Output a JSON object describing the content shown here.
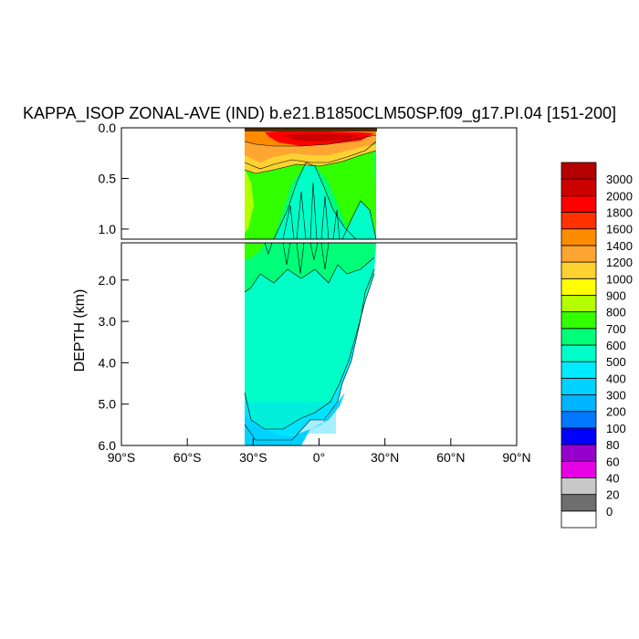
{
  "chart_data": {
    "type": "heatmap",
    "title": "KAPPA_ISOP ZONAL-AVE (IND) b.e21.B1850CLM50SP.f09_g17.PI.04 [151-200]",
    "ylabel": "DEPTH (km)",
    "xlim": [
      -90,
      90
    ],
    "ylim_upper_panel_km": [
      0.0,
      1.1
    ],
    "ylim_lower_panel_km": [
      1.1,
      6.0
    ],
    "y_reversed": true,
    "x_ticks": [
      {
        "value": -90,
        "label": "90°S"
      },
      {
        "value": -60,
        "label": "60°S"
      },
      {
        "value": -30,
        "label": "30°S"
      },
      {
        "value": 0,
        "label": "0°"
      },
      {
        "value": 30,
        "label": "30°N"
      },
      {
        "value": 60,
        "label": "60°N"
      },
      {
        "value": 90,
        "label": "90°N"
      }
    ],
    "y_ticks_upper": [
      {
        "value": 0.0,
        "label": "0.0"
      },
      {
        "value": 0.5,
        "label": "0.5"
      },
      {
        "value": 1.0,
        "label": "1.0"
      }
    ],
    "y_ticks_lower": [
      {
        "value": 2.0,
        "label": "2.0"
      },
      {
        "value": 3.0,
        "label": "3.0"
      },
      {
        "value": 4.0,
        "label": "4.0"
      },
      {
        "value": 5.0,
        "label": "5.0"
      },
      {
        "value": 6.0,
        "label": "6.0"
      }
    ],
    "data_lat_range": [
      -35,
      25
    ],
    "colorbar": {
      "levels": [
        "0",
        "20",
        "40",
        "60",
        "80",
        "100",
        "200",
        "300",
        "400",
        "500",
        "600",
        "700",
        "800",
        "900",
        "1000",
        "1200",
        "1400",
        "1600",
        "1800",
        "2000",
        "3000"
      ],
      "colors": [
        "#ffffff",
        "#6e6e6e",
        "#c8c8c8",
        "#e600e6",
        "#9600cd",
        "#0000ff",
        "#0078ff",
        "#00b4ff",
        "#00d2ff",
        "#00ebff",
        "#00ffc8",
        "#00ff78",
        "#32ff00",
        "#b4ff00",
        "#ffff00",
        "#ffd232",
        "#ffa532",
        "#ff8c00",
        "#ff3200",
        "#ff0000",
        "#cd0000",
        "#b40000"
      ]
    },
    "fields": [
      {
        "lat_start": -35,
        "lat_end": 25,
        "depth_top": 0.0,
        "depth_bottom": 0.3,
        "value": 1300,
        "note": "surface orange band"
      },
      {
        "lat_start": -20,
        "lat_end": 20,
        "depth_top": 0.0,
        "depth_bottom": 0.08,
        "value": 2500,
        "note": "red near-surface maximum"
      },
      {
        "lat_start": -35,
        "lat_end": 25,
        "depth_top": 0.3,
        "depth_bottom": 1.6,
        "value": 750
      },
      {
        "lat_start": -35,
        "lat_end": 25,
        "depth_top": 1.6,
        "depth_bottom": 4.5,
        "value": 550
      },
      {
        "lat_start": -35,
        "lat_end": 10,
        "depth_top": 4.5,
        "depth_bottom": 5.3,
        "value": 450
      }
    ]
  }
}
